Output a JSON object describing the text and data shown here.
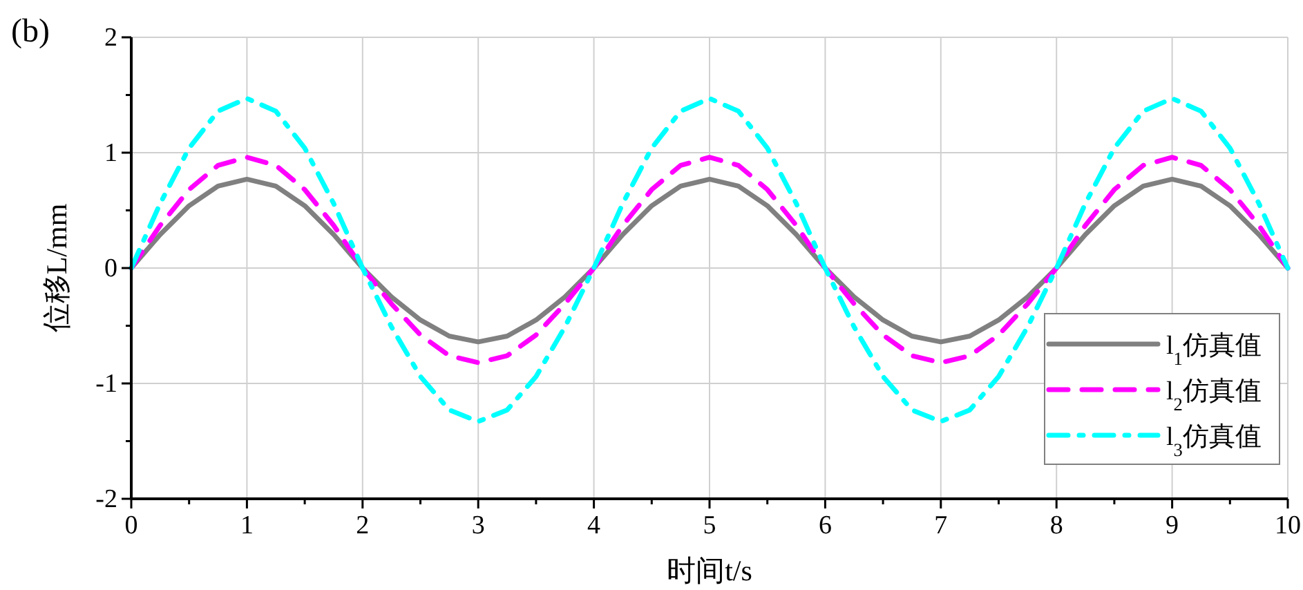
{
  "chart_data": {
    "type": "line",
    "title": "(b)",
    "xlabel": "时间t/s",
    "ylabel": "位移L/mm",
    "x": [
      0,
      0.25,
      0.5,
      0.75,
      1,
      1.25,
      1.5,
      1.75,
      2,
      2.25,
      2.5,
      2.75,
      3,
      3.25,
      3.5,
      3.75,
      4,
      4.25,
      4.5,
      4.75,
      5,
      5.25,
      5.5,
      5.75,
      6,
      6.25,
      6.5,
      6.75,
      7,
      7.25,
      7.5,
      7.75,
      8,
      8.25,
      8.5,
      8.75,
      9,
      9.25,
      9.5,
      9.75,
      10
    ],
    "series": [
      {
        "name": "l$_{1}$仿真值",
        "color": "#808080",
        "line_style": "solid",
        "values": [
          0,
          0.29,
          0.54,
          0.71,
          0.77,
          0.71,
          0.54,
          0.29,
          0,
          -0.25,
          -0.45,
          -0.59,
          -0.64,
          -0.59,
          -0.45,
          -0.25,
          0,
          0.29,
          0.54,
          0.71,
          0.77,
          0.71,
          0.54,
          0.29,
          0,
          -0.25,
          -0.45,
          -0.59,
          -0.64,
          -0.59,
          -0.45,
          -0.25,
          0,
          0.29,
          0.54,
          0.71,
          0.77,
          0.71,
          0.54,
          0.29,
          0
        ]
      },
      {
        "name": "l$_{2}$仿真值",
        "color": "#ff00ff",
        "line_style": "dashed",
        "values": [
          0,
          0.37,
          0.68,
          0.89,
          0.96,
          0.89,
          0.68,
          0.37,
          0,
          -0.31,
          -0.58,
          -0.76,
          -0.82,
          -0.76,
          -0.58,
          -0.31,
          0,
          0.37,
          0.68,
          0.89,
          0.96,
          0.89,
          0.68,
          0.37,
          0,
          -0.31,
          -0.58,
          -0.76,
          -0.82,
          -0.76,
          -0.58,
          -0.31,
          0,
          0.37,
          0.68,
          0.89,
          0.96,
          0.89,
          0.68,
          0.37,
          0
        ]
      },
      {
        "name": "l$_{3}$仿真值",
        "color": "#00ffff",
        "line_style": "dashdot",
        "values": [
          0,
          0.56,
          1.04,
          1.36,
          1.47,
          1.36,
          1.04,
          0.56,
          0,
          -0.51,
          -0.94,
          -1.23,
          -1.33,
          -1.23,
          -0.94,
          -0.51,
          0,
          0.56,
          1.04,
          1.36,
          1.47,
          1.36,
          1.04,
          0.56,
          0,
          -0.51,
          -0.94,
          -1.23,
          -1.33,
          -1.23,
          -0.94,
          -0.51,
          0,
          0.56,
          1.04,
          1.36,
          1.47,
          1.36,
          1.04,
          0.56,
          0
        ]
      }
    ],
    "xlim": [
      0,
      10
    ],
    "xticks": [
      0,
      {
        "value": 0.5,
        "label": null
      },
      1,
      {
        "value": 1.5,
        "label": null
      },
      2,
      {
        "value": 2.5,
        "label": null
      },
      3,
      {
        "value": 3.5,
        "label": null
      },
      4,
      {
        "value": 4.5,
        "label": null
      },
      5,
      {
        "value": 5.5,
        "label": null
      },
      6,
      {
        "value": 6.5,
        "label": null
      },
      7,
      {
        "value": 7.5,
        "label": null
      },
      8,
      {
        "value": 8.5,
        "label": null
      },
      9,
      {
        "value": 9.5,
        "label": null
      },
      10
    ],
    "ylim": [
      -2,
      2
    ],
    "yticks": [
      -2,
      {
        "value": -1.5,
        "label": null
      },
      -1,
      {
        "value": -0.5,
        "label": null
      },
      0,
      {
        "value": 0.5,
        "label": null
      },
      1,
      {
        "value": 1.5,
        "label": null
      },
      2
    ],
    "grid": true,
    "legend": "bottom right"
  }
}
